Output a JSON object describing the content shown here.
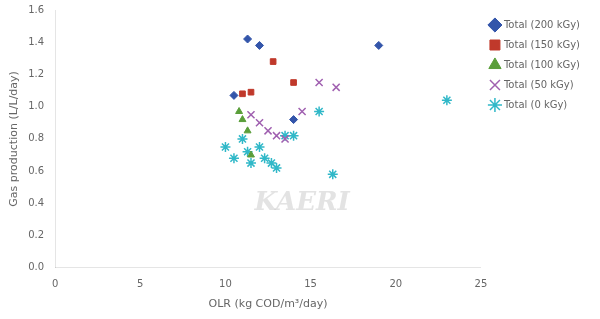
{
  "chart_data": {
    "type": "scatter",
    "xlabel": "OLR (kg COD/m³/day)",
    "ylabel": "Gas production (L/L/day)",
    "series": [
      {
        "name": "Total (200 kGy)",
        "color": "#3355aa",
        "marker": "diamond",
        "x": [
          10.5,
          11.3,
          12.0,
          19.0,
          14.0
        ],
        "values": [
          1.07,
          1.42,
          1.38,
          1.38,
          0.92
        ]
      },
      {
        "name": "Total (150 kGy)",
        "color": "#c0392b",
        "marker": "square",
        "x": [
          11.0,
          11.5,
          12.8,
          14.0
        ],
        "values": [
          1.08,
          1.09,
          1.28,
          1.15
        ]
      },
      {
        "name": "Total (100 kGy)",
        "color": "#5a9e3a",
        "marker": "triangle",
        "x": [
          10.8,
          11.0,
          11.3,
          11.5
        ],
        "values": [
          0.97,
          0.92,
          0.85,
          0.7
        ]
      },
      {
        "name": "Total (50 kGy)",
        "color": "#a060b0",
        "marker": "x",
        "x": [
          11.5,
          12.0,
          12.5,
          13.0,
          13.5,
          14.5,
          15.5,
          16.5
        ],
        "values": [
          0.95,
          0.9,
          0.85,
          0.82,
          0.8,
          0.97,
          1.15,
          1.12
        ]
      },
      {
        "name": "Total (0 kGy)",
        "color": "#30b8c8",
        "marker": "star",
        "x": [
          10.0,
          10.5,
          11.0,
          11.3,
          11.5,
          12.0,
          12.3,
          12.7,
          13.0,
          13.5,
          14.0,
          15.5,
          16.3,
          23.0
        ],
        "values": [
          0.75,
          0.68,
          0.8,
          0.72,
          0.65,
          0.75,
          0.68,
          0.65,
          0.62,
          0.82,
          0.82,
          0.97,
          0.58,
          1.04
        ]
      }
    ],
    "xlim": [
      0,
      25
    ],
    "ylim": [
      0,
      1.6
    ],
    "xticks": [
      0,
      5,
      10,
      15,
      20,
      25
    ],
    "yticks": [
      {
        "value": 0,
        "label": "0.0"
      },
      0.2,
      0.4,
      0.6,
      0.8,
      {
        "value": 1.0,
        "label": "1.0"
      },
      1.2,
      1.4,
      1.6
    ],
    "grid": false,
    "legend": "right",
    "annotations": [
      {
        "text": "KAERI",
        "color": "#cccccc"
      }
    ]
  }
}
